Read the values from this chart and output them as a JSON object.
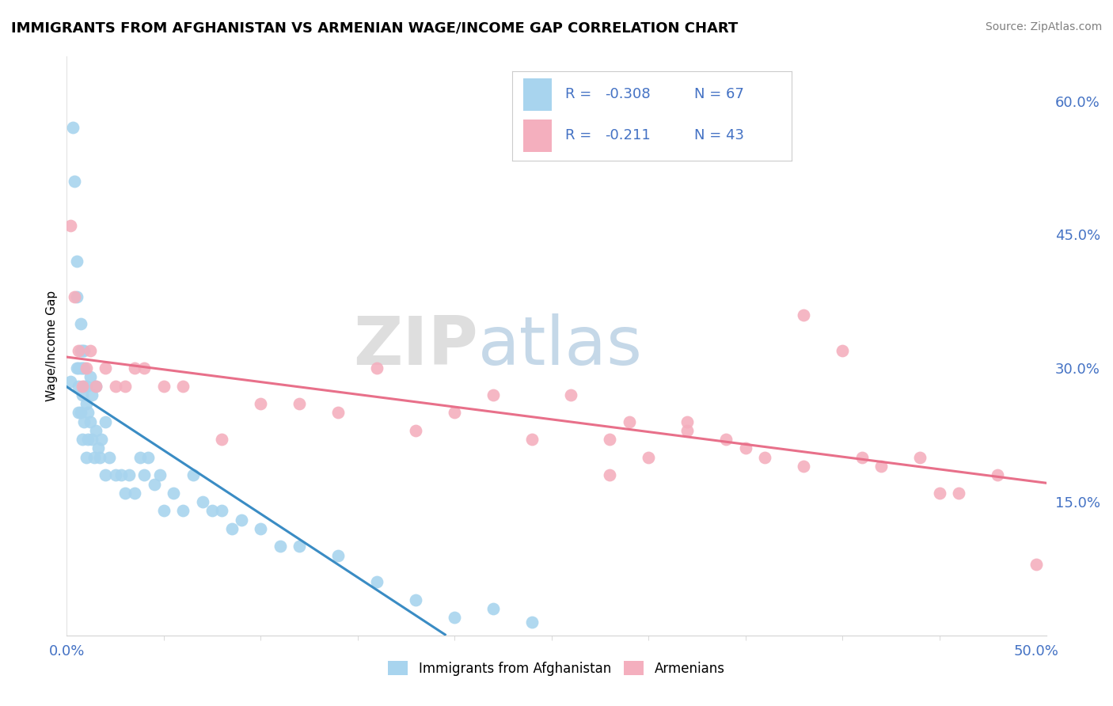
{
  "title": "IMMIGRANTS FROM AFGHANISTAN VS ARMENIAN WAGE/INCOME GAP CORRELATION CHART",
  "source": "Source: ZipAtlas.com",
  "ylabel": "Wage/Income Gap",
  "ylabel_right_vals": [
    0.6,
    0.45,
    0.3,
    0.15
  ],
  "legend1_r": "-0.308",
  "legend1_n": "67",
  "legend2_r": "-0.211",
  "legend2_n": "43",
  "legend_label1": "Immigrants from Afghanistan",
  "legend_label2": "Armenians",
  "color_afghan": "#A8D4EE",
  "color_armenian": "#F4AFBE",
  "color_afghan_line": "#3A8CC4",
  "color_armenian_line": "#E8708A",
  "watermark_zip": "ZIP",
  "watermark_atlas": "atlas",
  "afghanistan_x": [
    0.002,
    0.003,
    0.004,
    0.005,
    0.005,
    0.005,
    0.006,
    0.006,
    0.006,
    0.007,
    0.007,
    0.007,
    0.007,
    0.008,
    0.008,
    0.008,
    0.008,
    0.009,
    0.009,
    0.009,
    0.009,
    0.01,
    0.01,
    0.01,
    0.011,
    0.011,
    0.012,
    0.012,
    0.013,
    0.013,
    0.014,
    0.015,
    0.015,
    0.016,
    0.017,
    0.018,
    0.02,
    0.02,
    0.022,
    0.025,
    0.028,
    0.03,
    0.032,
    0.035,
    0.038,
    0.04,
    0.042,
    0.045,
    0.048,
    0.05,
    0.055,
    0.06,
    0.065,
    0.07,
    0.075,
    0.08,
    0.085,
    0.09,
    0.1,
    0.11,
    0.12,
    0.14,
    0.16,
    0.18,
    0.2,
    0.22,
    0.24
  ],
  "afghanistan_y": [
    0.285,
    0.57,
    0.51,
    0.3,
    0.38,
    0.42,
    0.28,
    0.3,
    0.25,
    0.25,
    0.3,
    0.32,
    0.35,
    0.22,
    0.27,
    0.3,
    0.32,
    0.24,
    0.28,
    0.3,
    0.32,
    0.2,
    0.26,
    0.28,
    0.22,
    0.25,
    0.24,
    0.29,
    0.22,
    0.27,
    0.2,
    0.23,
    0.28,
    0.21,
    0.2,
    0.22,
    0.18,
    0.24,
    0.2,
    0.18,
    0.18,
    0.16,
    0.18,
    0.16,
    0.2,
    0.18,
    0.2,
    0.17,
    0.18,
    0.14,
    0.16,
    0.14,
    0.18,
    0.15,
    0.14,
    0.14,
    0.12,
    0.13,
    0.12,
    0.1,
    0.1,
    0.09,
    0.06,
    0.04,
    0.02,
    0.03,
    0.015
  ],
  "armenian_x": [
    0.002,
    0.004,
    0.006,
    0.008,
    0.01,
    0.012,
    0.015,
    0.02,
    0.025,
    0.03,
    0.035,
    0.04,
    0.05,
    0.06,
    0.08,
    0.1,
    0.12,
    0.14,
    0.16,
    0.18,
    0.2,
    0.22,
    0.24,
    0.26,
    0.28,
    0.3,
    0.32,
    0.34,
    0.36,
    0.38,
    0.4,
    0.42,
    0.44,
    0.46,
    0.48,
    0.5,
    0.35,
    0.29,
    0.38,
    0.41,
    0.45,
    0.32,
    0.28
  ],
  "armenian_y": [
    0.46,
    0.38,
    0.32,
    0.28,
    0.3,
    0.32,
    0.28,
    0.3,
    0.28,
    0.28,
    0.3,
    0.3,
    0.28,
    0.28,
    0.22,
    0.26,
    0.26,
    0.25,
    0.3,
    0.23,
    0.25,
    0.27,
    0.22,
    0.27,
    0.22,
    0.2,
    0.23,
    0.22,
    0.2,
    0.36,
    0.32,
    0.19,
    0.2,
    0.16,
    0.18,
    0.08,
    0.21,
    0.24,
    0.19,
    0.2,
    0.16,
    0.24,
    0.18
  ],
  "xlim": [
    0.0,
    0.505
  ],
  "ylim": [
    0.0,
    0.65
  ],
  "background_color": "#FFFFFF",
  "grid_color": "#CCCCCC",
  "blue_color": "#4472C4",
  "tick_color": "#4472C4"
}
